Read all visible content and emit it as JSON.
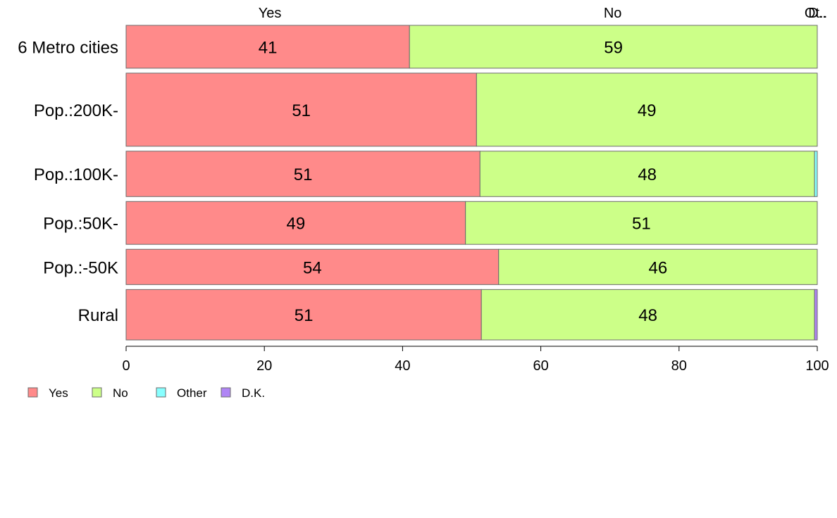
{
  "chart_data": {
    "type": "bar",
    "orientation": "horizontal-stacked-percent",
    "categories": [
      "6 Metro cities",
      "Pop.:200K-",
      "Pop.:100K-",
      "Pop.:50K-",
      "Pop.:-50K",
      "Rural"
    ],
    "category_weights": [
      0.85,
      1.45,
      0.9,
      0.85,
      0.7,
      1.0
    ],
    "series": [
      {
        "name": "Yes",
        "color": "#ff8a8a",
        "values": [
          41,
          50.7,
          51.2,
          49.1,
          53.9,
          51.4
        ]
      },
      {
        "name": "No",
        "color": "#ccff88",
        "values": [
          59,
          49.3,
          48.4,
          50.9,
          46.1,
          48.2
        ]
      },
      {
        "name": "Other",
        "color": "#88ffff",
        "values": [
          0,
          0,
          0.4,
          0,
          0,
          0
        ]
      },
      {
        "name": "D.K.",
        "color": "#b085f5",
        "values": [
          0,
          0,
          0,
          0,
          0,
          0.4
        ]
      }
    ],
    "value_labels": [
      [
        "41",
        "59"
      ],
      [
        "51",
        "49"
      ],
      [
        "51",
        "48"
      ],
      [
        "49",
        "51"
      ],
      [
        "54",
        "46"
      ],
      [
        "51",
        "48"
      ]
    ],
    "top_labels": [
      {
        "text": "Yes",
        "x": 20.8
      },
      {
        "text": "No",
        "x": 70.4
      },
      {
        "text": "Ot..",
        "x": 99.8
      },
      {
        "text": "D..",
        "x": 100
      }
    ],
    "xlim": [
      0,
      100
    ],
    "xticks": [
      0,
      20,
      40,
      60,
      80,
      100
    ],
    "legend_position": "bottom-left",
    "legend": [
      "Yes",
      "No",
      "Other",
      "D.K."
    ]
  }
}
